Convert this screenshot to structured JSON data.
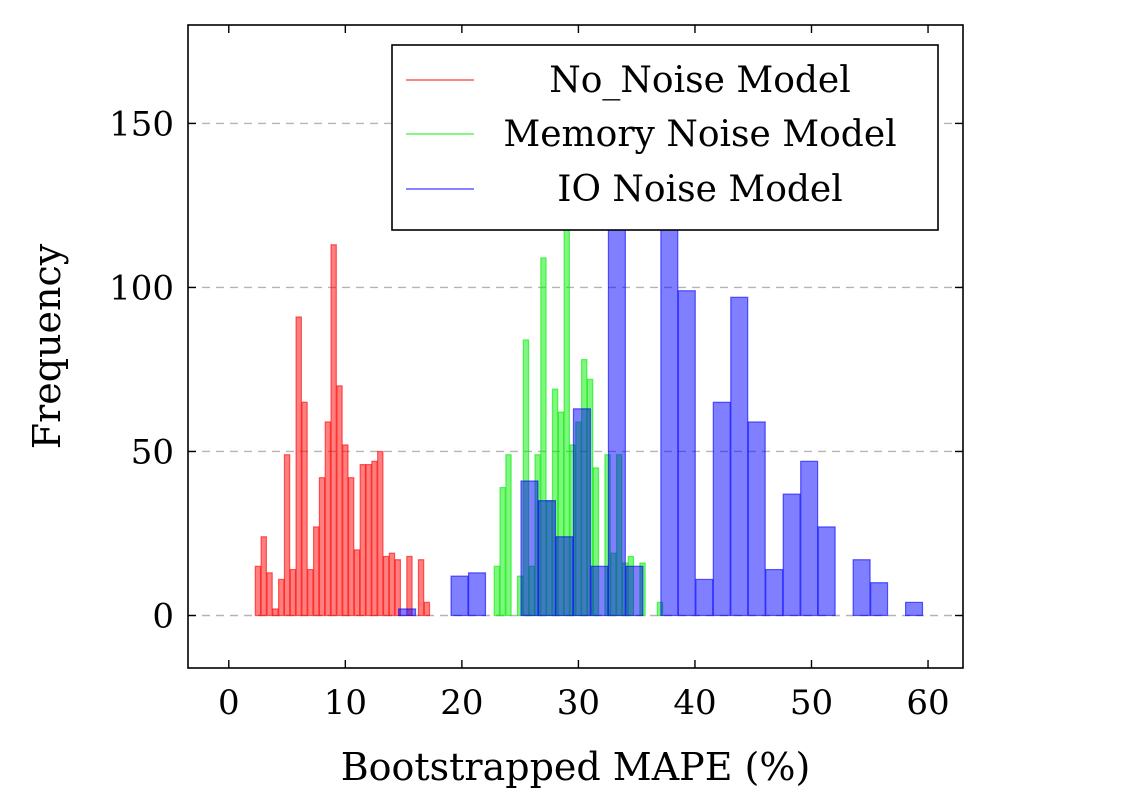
{
  "chart_data": {
    "type": "bar",
    "xlabel": "Bootstrapped MAPE (%)",
    "ylabel": "Frequency",
    "xlim": [
      -3.5,
      63
    ],
    "ylim": [
      -16,
      180
    ],
    "xticks": [
      0,
      10,
      20,
      30,
      40,
      50,
      60
    ],
    "yticks": [
      0,
      50,
      100,
      150
    ],
    "grid": "horizontal dashed",
    "legend_position": "top-right",
    "series": [
      {
        "name": "No_Noise Model",
        "color": "#ff0000",
        "bin_width": 0.45,
        "bins": [
          {
            "x": 2.5,
            "y": 15
          },
          {
            "x": 3.0,
            "y": 24
          },
          {
            "x": 3.5,
            "y": 13
          },
          {
            "x": 4.0,
            "y": 2
          },
          {
            "x": 4.5,
            "y": 11
          },
          {
            "x": 5.0,
            "y": 49
          },
          {
            "x": 5.5,
            "y": 14
          },
          {
            "x": 6.0,
            "y": 91
          },
          {
            "x": 6.5,
            "y": 65
          },
          {
            "x": 7.0,
            "y": 14
          },
          {
            "x": 7.5,
            "y": 27
          },
          {
            "x": 8.0,
            "y": 42
          },
          {
            "x": 8.5,
            "y": 59
          },
          {
            "x": 9.0,
            "y": 113
          },
          {
            "x": 9.5,
            "y": 70
          },
          {
            "x": 10.0,
            "y": 52
          },
          {
            "x": 10.5,
            "y": 42
          },
          {
            "x": 11.0,
            "y": 20
          },
          {
            "x": 11.5,
            "y": 46
          },
          {
            "x": 12.0,
            "y": 46
          },
          {
            "x": 12.5,
            "y": 47
          },
          {
            "x": 13.0,
            "y": 50
          },
          {
            "x": 13.5,
            "y": 18
          },
          {
            "x": 14.0,
            "y": 19
          },
          {
            "x": 14.5,
            "y": 17
          },
          {
            "x": 15.5,
            "y": 18
          },
          {
            "x": 16.5,
            "y": 17
          },
          {
            "x": 17.0,
            "y": 4
          }
        ]
      },
      {
        "name": "Memory Noise Model",
        "color": "#00ee00",
        "bin_width": 0.45,
        "bins": [
          {
            "x": 23.0,
            "y": 15
          },
          {
            "x": 23.5,
            "y": 39
          },
          {
            "x": 24.0,
            "y": 49
          },
          {
            "x": 25.0,
            "y": 12
          },
          {
            "x": 25.5,
            "y": 84
          },
          {
            "x": 26.0,
            "y": 15
          },
          {
            "x": 26.5,
            "y": 49
          },
          {
            "x": 27.0,
            "y": 109
          },
          {
            "x": 27.5,
            "y": 35
          },
          {
            "x": 28.0,
            "y": 69
          },
          {
            "x": 28.5,
            "y": 62
          },
          {
            "x": 29.0,
            "y": 119
          },
          {
            "x": 29.5,
            "y": 52
          },
          {
            "x": 30.0,
            "y": 59
          },
          {
            "x": 30.5,
            "y": 78
          },
          {
            "x": 31.0,
            "y": 72
          },
          {
            "x": 31.5,
            "y": 45
          },
          {
            "x": 32.5,
            "y": 49
          },
          {
            "x": 33.0,
            "y": 19
          },
          {
            "x": 33.5,
            "y": 49
          },
          {
            "x": 34.0,
            "y": 16
          },
          {
            "x": 34.5,
            "y": 18
          },
          {
            "x": 35.5,
            "y": 16
          },
          {
            "x": 37.0,
            "y": 4
          }
        ]
      },
      {
        "name": "IO Noise Model",
        "color": "#0000ff",
        "bin_width": 1.45,
        "bins": [
          {
            "x": 15.3,
            "y": 2
          },
          {
            "x": 19.8,
            "y": 12
          },
          {
            "x": 21.3,
            "y": 13
          },
          {
            "x": 25.8,
            "y": 41
          },
          {
            "x": 27.3,
            "y": 35
          },
          {
            "x": 28.8,
            "y": 24
          },
          {
            "x": 30.3,
            "y": 63
          },
          {
            "x": 31.8,
            "y": 15
          },
          {
            "x": 33.3,
            "y": 120
          },
          {
            "x": 34.8,
            "y": 15
          },
          {
            "x": 37.8,
            "y": 120
          },
          {
            "x": 39.3,
            "y": 99
          },
          {
            "x": 40.8,
            "y": 11
          },
          {
            "x": 42.3,
            "y": 65
          },
          {
            "x": 43.8,
            "y": 97
          },
          {
            "x": 45.3,
            "y": 59
          },
          {
            "x": 46.8,
            "y": 14
          },
          {
            "x": 48.3,
            "y": 37
          },
          {
            "x": 49.8,
            "y": 47
          },
          {
            "x": 51.3,
            "y": 27
          },
          {
            "x": 54.3,
            "y": 17
          },
          {
            "x": 55.8,
            "y": 10
          },
          {
            "x": 58.8,
            "y": 4
          }
        ]
      }
    ]
  }
}
